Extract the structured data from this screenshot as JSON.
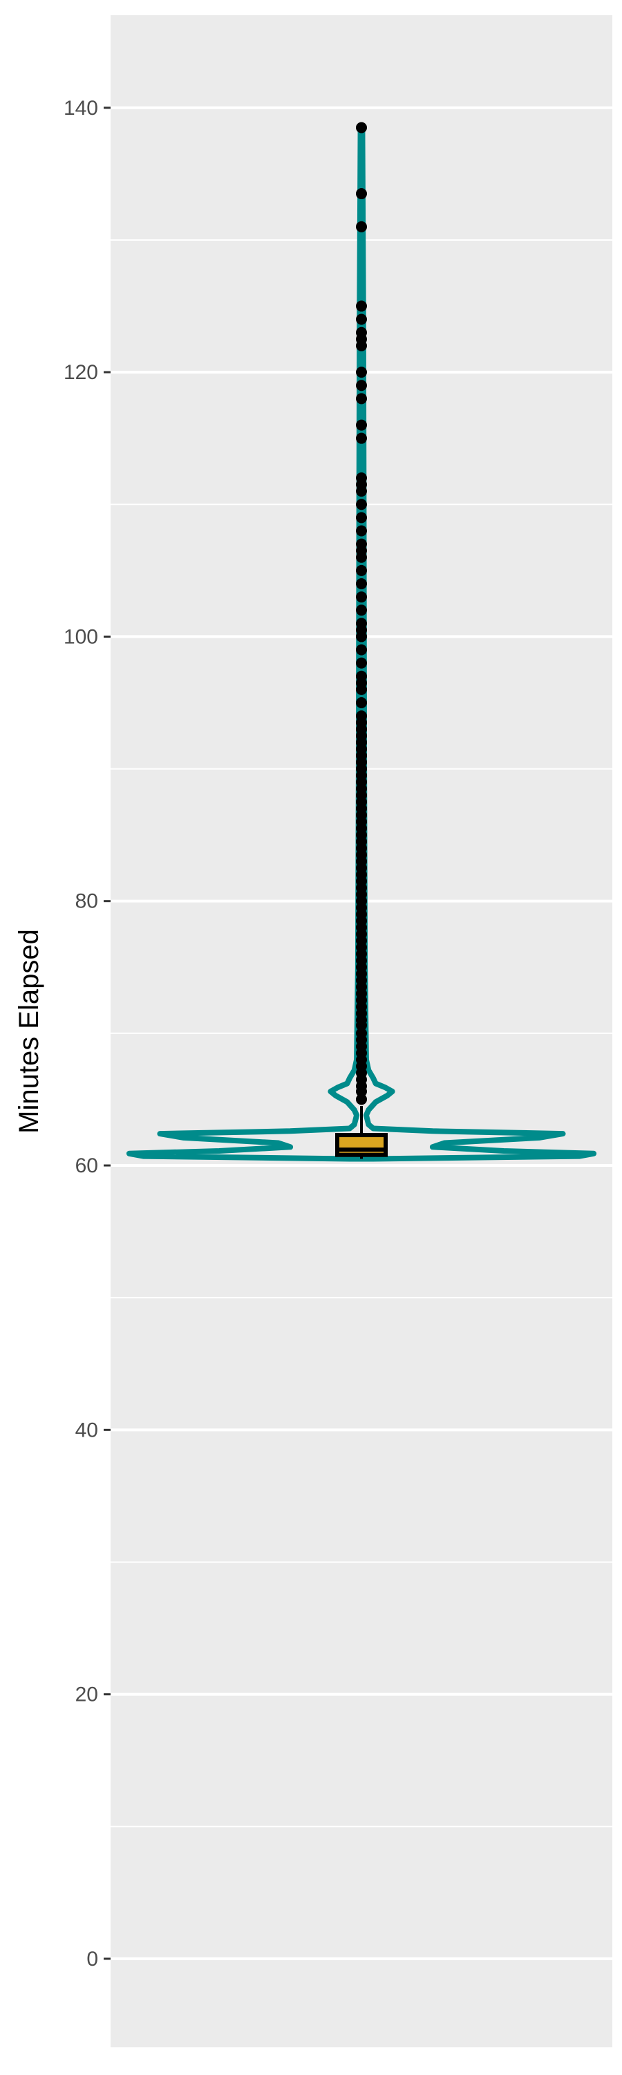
{
  "chart_data": {
    "type": "violin",
    "title": "",
    "xlabel": "",
    "ylabel": "Minutes Elapsed",
    "ylim": [
      -6.7,
      147
    ],
    "y_ticks": [
      0,
      20,
      40,
      60,
      80,
      100,
      120,
      140
    ],
    "y_tick_labels": [
      "0",
      "20",
      "40",
      "60",
      "80",
      "100",
      "120",
      "140"
    ],
    "grid": true,
    "legend": "none",
    "box": {
      "min": 60.5,
      "q1": 60.8,
      "median": 61.2,
      "q3": 62.3,
      "whisker_low": 60.5,
      "whisker_high": 64.5
    },
    "outliers": [
      65,
      65.6,
      66,
      66.5,
      67,
      67.5,
      68,
      68.5,
      69,
      69.5,
      70,
      70.6,
      71,
      71.5,
      72,
      72.5,
      73,
      73.5,
      74,
      74.5,
      75,
      75.5,
      76,
      76.5,
      77,
      77.5,
      78,
      78.5,
      79,
      79.5,
      80,
      80.5,
      81,
      81.5,
      82,
      82.5,
      83,
      83.5,
      84,
      84.5,
      85,
      85.5,
      86,
      86.5,
      87,
      87.5,
      88,
      88.5,
      89,
      89.5,
      90,
      90.5,
      91,
      91.5,
      92,
      92.5,
      93,
      93.5,
      94,
      95,
      96,
      96.5,
      97,
      98,
      99,
      100,
      100.5,
      101,
      102,
      103,
      104,
      105,
      106,
      106.5,
      107,
      108,
      109,
      110,
      111,
      111.5,
      112,
      115,
      116,
      118,
      119,
      120,
      122,
      122.5,
      123,
      124,
      125,
      131,
      133.5,
      138.5
    ],
    "density": [
      [
        60.5,
        0.05
      ],
      [
        60.7,
        0.92
      ],
      [
        60.9,
        0.98
      ],
      [
        61.1,
        0.6
      ],
      [
        61.4,
        0.3
      ],
      [
        61.7,
        0.35
      ],
      [
        62.1,
        0.75
      ],
      [
        62.4,
        0.85
      ],
      [
        62.6,
        0.3
      ],
      [
        62.8,
        0.05
      ],
      [
        63.1,
        0.03
      ],
      [
        63.8,
        0.02
      ],
      [
        64.2,
        0.03
      ],
      [
        64.8,
        0.06
      ],
      [
        65.3,
        0.11
      ],
      [
        65.6,
        0.13
      ],
      [
        65.9,
        0.1
      ],
      [
        66.2,
        0.06
      ],
      [
        66.6,
        0.05
      ],
      [
        67.2,
        0.03
      ],
      [
        68,
        0.02
      ],
      [
        75,
        0.015
      ],
      [
        90,
        0.012
      ],
      [
        110,
        0.01
      ],
      [
        125,
        0.008
      ],
      [
        138.5,
        0.004
      ]
    ],
    "colors": {
      "violin_outline": "#008b8b",
      "box_fill": "#daa520",
      "box_outline": "#000000",
      "points": "#000000",
      "panel_bg": "#ebebeb",
      "grid": "#ffffff"
    }
  }
}
